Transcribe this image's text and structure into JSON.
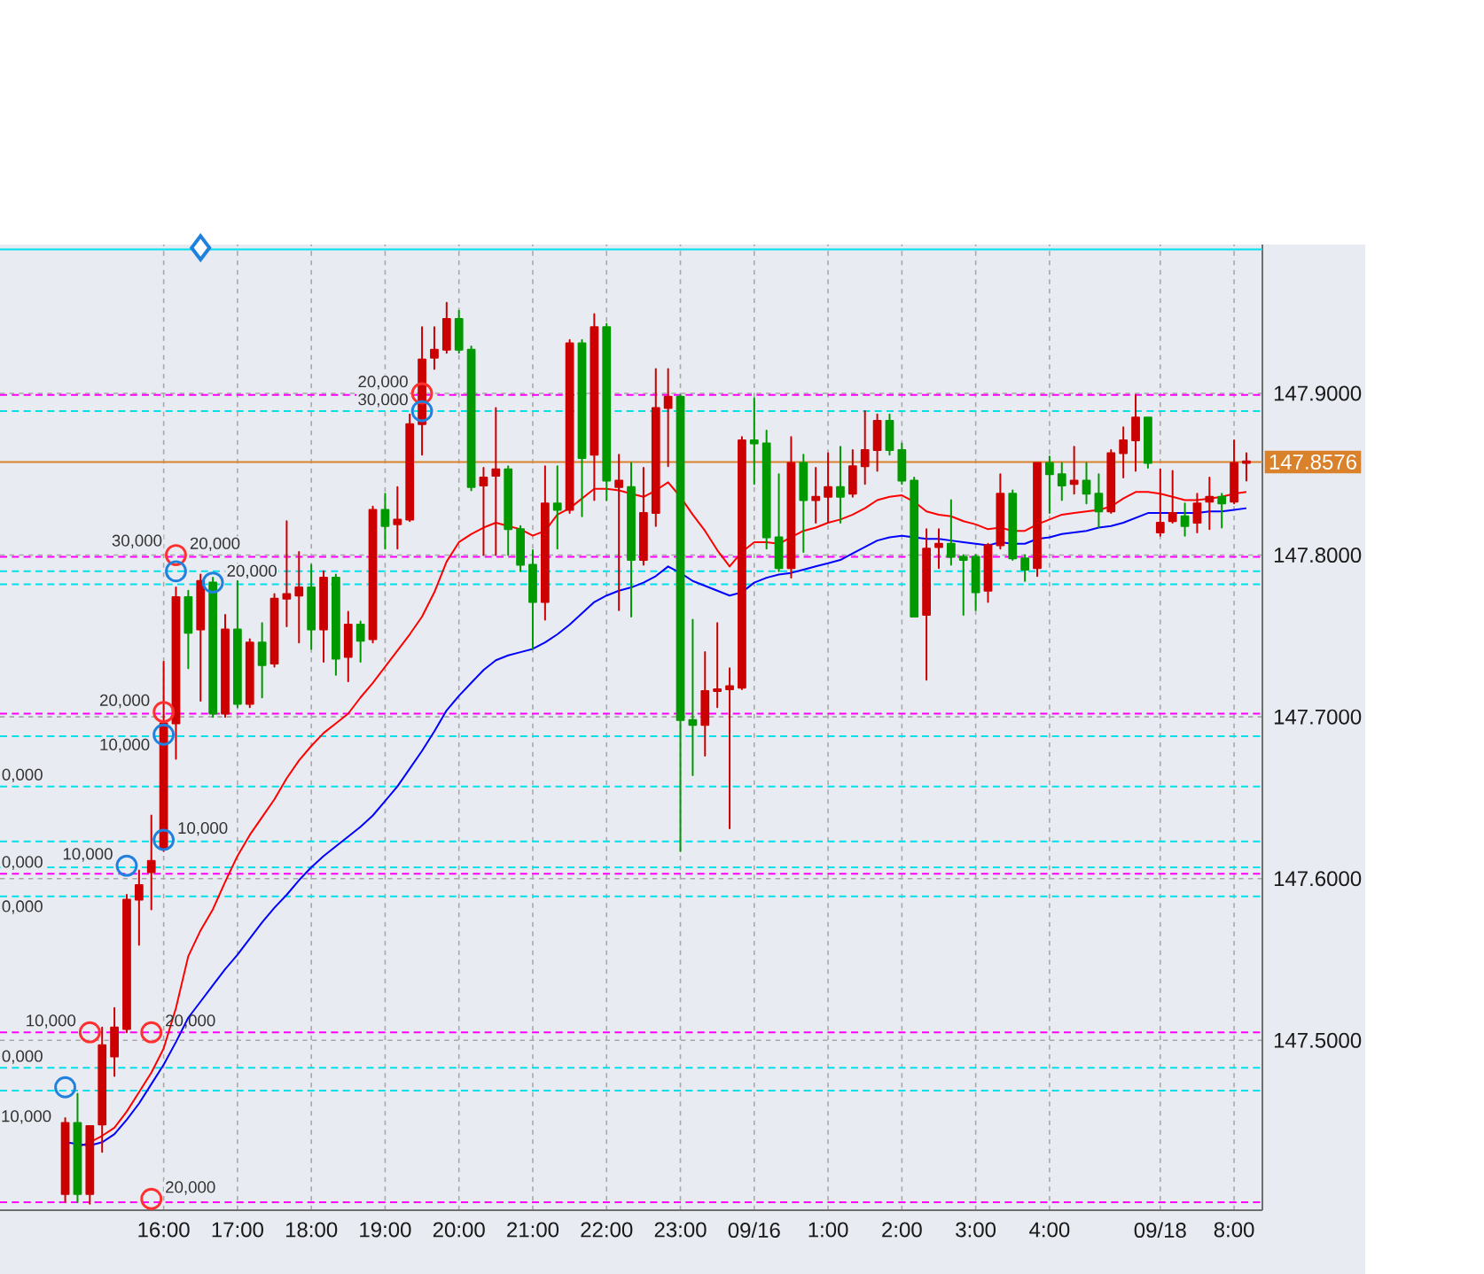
{
  "chart_data": {
    "type": "candlestick",
    "categories": [
      null,
      null,
      null,
      null,
      null,
      null,
      null,
      null,
      "16:00",
      null,
      null,
      null,
      null,
      null,
      "17:00",
      null,
      null,
      null,
      null,
      null,
      "18:00",
      null,
      null,
      null,
      null,
      null,
      "19:00",
      null,
      null,
      null,
      null,
      null,
      "20:00",
      null,
      null,
      null,
      null,
      null,
      "21:00",
      null,
      null,
      null,
      null,
      null,
      "22:00",
      null,
      null,
      null,
      null,
      null,
      "23:00",
      null,
      null,
      null,
      null,
      null,
      "09/16",
      null,
      null,
      null,
      null,
      null,
      "1:00",
      null,
      null,
      null,
      null,
      null,
      "2:00",
      null,
      null,
      null,
      null,
      null,
      "3:00",
      null,
      null,
      null,
      null,
      null,
      "4:00",
      null,
      null,
      null,
      null,
      null,
      null,
      null,
      null,
      "09/18",
      null,
      null,
      null,
      null,
      null,
      "8:00",
      null
    ],
    "ohlc": [
      [
        147.405,
        147.452,
        147.4,
        147.449
      ],
      [
        147.449,
        147.467,
        147.4,
        147.405
      ],
      [
        147.405,
        147.447,
        147.399,
        147.447
      ],
      [
        147.448,
        147.508,
        147.431,
        147.497
      ],
      [
        147.49,
        147.52,
        147.478,
        147.508
      ],
      [
        147.507,
        147.59,
        147.505,
        147.587
      ],
      [
        147.587,
        147.605,
        147.559,
        147.596
      ],
      [
        147.604,
        147.639,
        147.581,
        147.611
      ],
      [
        147.619,
        147.734,
        147.617,
        147.696
      ],
      [
        147.696,
        147.78,
        147.674,
        147.774
      ],
      [
        147.774,
        147.778,
        147.73,
        147.752
      ],
      [
        147.754,
        147.788,
        147.71,
        147.784
      ],
      [
        147.783,
        147.786,
        147.7,
        147.702
      ],
      [
        147.702,
        147.763,
        147.7,
        147.754
      ],
      [
        147.754,
        147.784,
        147.706,
        147.708
      ],
      [
        147.708,
        147.748,
        147.706,
        147.746
      ],
      [
        147.746,
        147.758,
        147.712,
        147.732
      ],
      [
        147.733,
        147.776,
        147.731,
        147.773
      ],
      [
        147.773,
        147.821,
        147.756,
        147.776
      ],
      [
        147.775,
        147.802,
        147.746,
        147.78
      ],
      [
        147.78,
        147.794,
        147.742,
        147.754
      ],
      [
        147.754,
        147.79,
        147.734,
        147.786
      ],
      [
        147.786,
        147.788,
        147.726,
        147.736
      ],
      [
        147.737,
        147.765,
        147.722,
        147.757
      ],
      [
        147.757,
        147.759,
        147.734,
        147.747
      ],
      [
        147.748,
        147.83,
        147.746,
        147.828
      ],
      [
        147.828,
        147.838,
        147.804,
        147.818
      ],
      [
        147.819,
        147.842,
        147.804,
        147.822
      ],
      [
        147.822,
        147.887,
        147.821,
        147.881
      ],
      [
        147.881,
        147.941,
        147.862,
        147.921
      ],
      [
        147.922,
        147.941,
        147.915,
        147.927
      ],
      [
        147.927,
        147.956,
        147.925,
        147.946
      ],
      [
        147.946,
        147.951,
        147.925,
        147.927
      ],
      [
        147.927,
        147.929,
        147.84,
        147.842
      ],
      [
        147.843,
        147.854,
        147.8,
        147.848
      ],
      [
        147.849,
        147.891,
        147.8,
        147.853
      ],
      [
        147.853,
        147.855,
        147.8,
        147.816
      ],
      [
        147.816,
        147.818,
        147.79,
        147.794
      ],
      [
        147.794,
        147.803,
        147.742,
        147.771
      ],
      [
        147.771,
        147.855,
        147.76,
        147.832
      ],
      [
        147.832,
        147.855,
        147.804,
        147.828
      ],
      [
        147.828,
        147.933,
        147.826,
        147.931
      ],
      [
        147.931,
        147.933,
        147.824,
        147.86
      ],
      [
        147.862,
        147.949,
        147.834,
        147.941
      ],
      [
        147.941,
        147.943,
        147.834,
        147.846
      ],
      [
        147.842,
        147.862,
        147.766,
        147.846
      ],
      [
        147.842,
        147.857,
        147.762,
        147.797
      ],
      [
        147.797,
        147.854,
        147.794,
        147.826
      ],
      [
        147.826,
        147.915,
        147.818,
        147.891
      ],
      [
        147.891,
        147.915,
        147.855,
        147.898
      ],
      [
        147.898,
        147.899,
        147.617,
        147.698
      ],
      [
        147.698,
        147.76,
        147.664,
        147.695
      ],
      [
        147.695,
        147.74,
        147.676,
        147.716
      ],
      [
        147.716,
        147.758,
        147.706,
        147.717
      ],
      [
        147.717,
        147.73,
        147.631,
        147.719
      ],
      [
        147.718,
        147.873,
        147.717,
        147.871
      ],
      [
        147.871,
        147.897,
        147.844,
        147.869
      ],
      [
        147.869,
        147.877,
        147.804,
        147.811
      ],
      [
        147.811,
        147.85,
        147.79,
        147.792
      ],
      [
        147.792,
        147.873,
        147.786,
        147.857
      ],
      [
        147.857,
        147.862,
        147.802,
        147.834
      ],
      [
        147.834,
        147.854,
        147.82,
        147.836
      ],
      [
        147.836,
        147.863,
        147.82,
        147.842
      ],
      [
        147.842,
        147.867,
        147.82,
        147.836
      ],
      [
        147.838,
        147.865,
        147.836,
        147.855
      ],
      [
        147.855,
        147.889,
        147.844,
        147.865
      ],
      [
        147.865,
        147.887,
        147.852,
        147.883
      ],
      [
        147.883,
        147.887,
        147.862,
        147.865
      ],
      [
        147.865,
        147.869,
        147.844,
        147.846
      ],
      [
        147.846,
        147.848,
        147.762,
        147.762
      ],
      [
        147.763,
        147.816,
        147.723,
        147.804
      ],
      [
        147.805,
        147.816,
        147.792,
        147.807
      ],
      [
        147.807,
        147.834,
        147.794,
        147.799
      ],
      [
        147.799,
        147.8,
        147.763,
        147.797
      ],
      [
        147.799,
        147.8,
        147.766,
        147.777
      ],
      [
        147.778,
        147.807,
        147.771,
        147.806
      ],
      [
        147.806,
        147.85,
        147.804,
        147.838
      ],
      [
        147.838,
        147.84,
        147.797,
        147.798
      ],
      [
        147.798,
        147.8,
        147.784,
        147.791
      ],
      [
        147.792,
        147.857,
        147.787,
        147.857
      ],
      [
        147.857,
        147.861,
        147.826,
        147.85
      ],
      [
        147.85,
        147.857,
        147.834,
        147.843
      ],
      [
        147.844,
        147.867,
        147.838,
        147.846
      ],
      [
        147.846,
        147.857,
        147.832,
        147.838
      ],
      [
        147.838,
        147.85,
        147.817,
        147.827
      ],
      [
        147.827,
        147.865,
        147.826,
        147.863
      ],
      [
        147.863,
        147.879,
        147.848,
        147.871
      ],
      [
        147.871,
        147.899,
        147.852,
        147.885
      ],
      [
        147.885,
        147.885,
        147.854,
        147.857
      ],
      [
        147.814,
        147.853,
        147.812,
        147.82
      ],
      [
        147.821,
        147.852,
        147.82,
        147.826
      ],
      [
        147.824,
        147.832,
        147.812,
        147.818
      ],
      [
        147.82,
        147.838,
        147.814,
        147.832
      ],
      [
        147.833,
        147.848,
        147.816,
        147.836
      ],
      [
        147.836,
        147.838,
        147.817,
        147.832
      ],
      [
        147.833,
        147.871,
        147.832,
        147.857
      ],
      [
        147.857,
        147.863,
        147.846,
        147.858
      ]
    ],
    "colors": [
      "#cc0000",
      "#009900",
      "#cc0000",
      "#cc0000",
      "#cc0000",
      "#cc0000",
      "#cc0000",
      "#cc0000",
      "#cc0000",
      "#cc0000",
      "#009900",
      "#cc0000",
      "#009900",
      "#cc0000",
      "#009900",
      "#cc0000",
      "#009900",
      "#cc0000",
      "#cc0000",
      "#cc0000",
      "#009900",
      "#cc0000",
      "#009900",
      "#cc0000",
      "#009900",
      "#cc0000",
      "#009900",
      "#cc0000",
      "#cc0000",
      "#cc0000",
      "#cc0000",
      "#cc0000",
      "#009900",
      "#009900",
      "#cc0000",
      "#cc0000",
      "#009900",
      "#009900",
      "#009900",
      "#cc0000",
      "#009900",
      "#cc0000",
      "#009900",
      "#cc0000",
      "#009900",
      "#cc0000",
      "#009900",
      "#cc0000",
      "#cc0000",
      "#cc0000",
      "#009900",
      "#009900",
      "#cc0000",
      "#cc0000",
      "#cc0000",
      "#cc0000",
      "#009900",
      "#009900",
      "#009900",
      "#cc0000",
      "#009900",
      "#cc0000",
      "#cc0000",
      "#009900",
      "#cc0000",
      "#cc0000",
      "#cc0000",
      "#009900",
      "#009900",
      "#009900",
      "#cc0000",
      "#cc0000",
      "#009900",
      "#009900",
      "#009900",
      "#cc0000",
      "#cc0000",
      "#009900",
      "#009900",
      "#cc0000",
      "#009900",
      "#009900",
      "#cc0000",
      "#009900",
      "#009900",
      "#cc0000",
      "#cc0000",
      "#cc0000",
      "#009900",
      "#cc0000",
      "#cc0000",
      "#009900",
      "#cc0000",
      "#cc0000",
      "#009900",
      "#cc0000",
      "#cc0000"
    ],
    "ylim": [
      147.395,
      147.992
    ],
    "yticks": [
      {
        "value": 147.5,
        "label": "147.5000"
      },
      {
        "value": 147.6,
        "label": "147.6000"
      },
      {
        "value": 147.7,
        "label": "147.7000"
      },
      {
        "value": 147.8,
        "label": "147.8000"
      },
      {
        "value": 147.9,
        "label": "147.9000"
      }
    ],
    "grid": true,
    "series": [
      {
        "type": "line",
        "color": "#ff0000",
        "line_style": "solid",
        "values": [
          null,
          147.434,
          147.437,
          147.441,
          147.446,
          147.456,
          147.468,
          147.48,
          147.495,
          147.52,
          147.552,
          147.568,
          147.581,
          147.598,
          147.614,
          147.627,
          147.638,
          147.649,
          147.662,
          147.673,
          147.682,
          147.69,
          147.696,
          147.702,
          147.712,
          147.721,
          147.731,
          147.741,
          147.751,
          147.762,
          147.777,
          147.796,
          147.808,
          147.813,
          147.817,
          147.82,
          147.818,
          147.816,
          147.812,
          147.815,
          147.825,
          147.829,
          147.835,
          147.841,
          147.841,
          147.84,
          147.838,
          147.836,
          147.84,
          147.845,
          147.836,
          147.825,
          147.815,
          147.803,
          147.793,
          147.802,
          147.808,
          147.808,
          147.807,
          147.811,
          147.815,
          147.817,
          147.82,
          147.822,
          147.825,
          147.829,
          147.834,
          147.836,
          147.837,
          147.833,
          147.827,
          147.825,
          147.824,
          147.821,
          147.819,
          147.816,
          147.817,
          147.815,
          147.815,
          147.819,
          147.822,
          147.825,
          147.826,
          147.827,
          147.828,
          147.83,
          147.835,
          147.839,
          147.839,
          147.838,
          147.836,
          147.834,
          147.834,
          147.835,
          147.836,
          147.838,
          147.839
        ]
      },
      {
        "type": "line",
        "color": "#0000ff",
        "line_style": "solid",
        "values": [
          147.437,
          147.436,
          147.435,
          147.437,
          147.442,
          147.451,
          147.461,
          147.473,
          147.485,
          147.499,
          147.514,
          147.524,
          147.534,
          147.544,
          147.553,
          147.563,
          147.573,
          147.582,
          147.59,
          147.599,
          147.607,
          147.614,
          147.62,
          147.626,
          147.632,
          147.639,
          147.648,
          147.657,
          147.668,
          147.679,
          147.691,
          147.704,
          147.713,
          147.721,
          147.729,
          147.735,
          147.738,
          147.74,
          147.742,
          147.746,
          147.751,
          147.757,
          147.764,
          147.771,
          147.775,
          147.778,
          147.78,
          147.783,
          147.787,
          147.793,
          147.789,
          147.784,
          147.781,
          147.778,
          147.775,
          147.777,
          147.783,
          147.786,
          147.788,
          147.789,
          147.791,
          147.793,
          147.795,
          147.797,
          147.801,
          147.805,
          147.809,
          147.811,
          147.812,
          147.811,
          147.81,
          147.81,
          147.809,
          147.808,
          147.807,
          147.806,
          147.808,
          147.807,
          147.807,
          147.81,
          147.811,
          147.813,
          147.814,
          147.815,
          147.817,
          147.818,
          147.82,
          147.823,
          147.826,
          147.826,
          147.826,
          147.826,
          147.826,
          147.827,
          147.827,
          147.828,
          147.829
        ]
      },
      {
        "type": "scatter",
        "color": "#ff3030",
        "marker": "circle",
        "values": [
          null,
          null,
          147.505,
          null,
          null,
          null,
          null,
          147.505,
          147.703,
          147.8,
          null,
          null,
          null,
          null,
          null,
          null,
          null,
          null,
          null,
          null,
          null,
          null,
          null,
          null,
          null,
          null,
          null,
          null,
          null,
          147.9,
          null,
          null,
          null,
          null,
          null,
          null,
          null,
          null,
          null,
          null,
          null,
          null,
          null,
          null,
          null,
          null,
          null,
          null,
          null,
          null,
          null,
          null,
          null,
          null,
          null,
          null,
          null,
          null,
          null,
          null,
          null,
          null,
          null,
          null,
          null,
          null,
          null,
          null,
          null,
          null,
          null,
          null,
          null,
          null,
          null,
          null,
          null,
          null,
          null,
          null,
          null,
          null,
          null,
          null,
          null,
          null,
          null,
          null,
          null,
          null,
          null,
          null,
          null,
          null,
          null,
          null,
          null
        ]
      },
      {
        "type": "scatter",
        "color": "#ff3030",
        "marker": "circle",
        "values": [
          null,
          null,
          null,
          null,
          null,
          null,
          null,
          147.402,
          null,
          null,
          null,
          null,
          null,
          null,
          null,
          null,
          null,
          null,
          null,
          null,
          null,
          null,
          null,
          null,
          null,
          null,
          null,
          null,
          null,
          null,
          null,
          null,
          null,
          null,
          null,
          null,
          null,
          null,
          null,
          null,
          null,
          null,
          null,
          null,
          null,
          null,
          null,
          null,
          null,
          null,
          null,
          null,
          null,
          null,
          null,
          null,
          null,
          null,
          null,
          null,
          null,
          null,
          null,
          null,
          null,
          null,
          null,
          null,
          null,
          null,
          null,
          null,
          null,
          null,
          null,
          null,
          null,
          null,
          null,
          null,
          null,
          null,
          null,
          null,
          null,
          null,
          null,
          null,
          null,
          null,
          null,
          null,
          null,
          null,
          null,
          null,
          null
        ]
      },
      {
        "type": "scatter",
        "color": "#2080dd",
        "marker": "circle",
        "values": [
          147.471,
          null,
          null,
          null,
          null,
          147.608,
          null,
          null,
          147.624,
          147.79,
          null,
          null,
          147.783,
          null,
          null,
          null,
          null,
          null,
          null,
          null,
          null,
          null,
          null,
          null,
          null,
          null,
          null,
          null,
          null,
          147.889,
          null,
          null,
          null,
          null,
          null,
          null,
          null,
          null,
          null,
          null,
          null,
          null,
          null,
          null,
          null,
          null,
          null,
          null,
          null,
          null,
          null,
          null,
          null,
          null,
          null,
          null,
          null,
          null,
          null,
          null,
          null,
          null,
          null,
          null,
          null,
          null,
          null,
          null,
          null,
          null,
          null,
          null,
          null,
          null,
          null,
          null,
          null,
          null,
          null,
          null,
          null,
          null,
          null,
          null,
          null,
          null,
          null,
          null,
          null,
          null,
          null,
          null,
          null,
          null,
          null,
          null,
          null
        ]
      },
      {
        "type": "scatter",
        "color": "#2080dd",
        "marker": "circle",
        "values": [
          null,
          null,
          null,
          null,
          null,
          null,
          null,
          null,
          147.689,
          null,
          null,
          null,
          null,
          null,
          null,
          null,
          null,
          null,
          null,
          null,
          null,
          null,
          null,
          null,
          null,
          null,
          null,
          null,
          null,
          null,
          null,
          null,
          null,
          null,
          null,
          null,
          null,
          null,
          null,
          null,
          null,
          null,
          null,
          null,
          null,
          null,
          null,
          null,
          null,
          null,
          null,
          null,
          null,
          null,
          null,
          null,
          null,
          null,
          null,
          null,
          null,
          null,
          null,
          null,
          null,
          null,
          null,
          null,
          null,
          null,
          null,
          null,
          null,
          null,
          null,
          null,
          null,
          null,
          null,
          null,
          null,
          null,
          null,
          null,
          null,
          null,
          null,
          null,
          null,
          null,
          null,
          null,
          null,
          null,
          null,
          null,
          null
        ]
      },
      {
        "type": "scatter",
        "color": "#2080dd",
        "marker": "diamond",
        "values": [
          null,
          null,
          null,
          null,
          null,
          null,
          null,
          null,
          null,
          null,
          null,
          147.99,
          null,
          null,
          null,
          null,
          null,
          null,
          null,
          null,
          null,
          null,
          null,
          null,
          null,
          null,
          null,
          null,
          null,
          null,
          null,
          null,
          null,
          null,
          null,
          null,
          null,
          null,
          null,
          null,
          null,
          null,
          null,
          null,
          null,
          null,
          null,
          null,
          null,
          null,
          null,
          null,
          null,
          null,
          null,
          null,
          null,
          null,
          null,
          null,
          null,
          null,
          null,
          null,
          null,
          null,
          null,
          null,
          null,
          null,
          null,
          null,
          null,
          null,
          null,
          null,
          null,
          null,
          null,
          null,
          null,
          null,
          null,
          null,
          null,
          null,
          null,
          null,
          null,
          null,
          null,
          null,
          null,
          null,
          null,
          null,
          null
        ]
      }
    ],
    "ref_lines": [
      {
        "axis": "y",
        "value": 147.989,
        "color": "#00e0ea",
        "line_style": "solid"
      },
      {
        "axis": "y",
        "value": 147.899,
        "color": "#ff00ff",
        "line_style": "dashed"
      },
      {
        "axis": "y",
        "value": 147.889,
        "color": "#00e0ea",
        "line_style": "dashed"
      },
      {
        "axis": "y",
        "value": 147.8576,
        "label": "147.8576",
        "color": "#d9822b",
        "line_style": "solid"
      },
      {
        "axis": "y",
        "value": 147.799,
        "color": "#ff00ff",
        "line_style": "dashed"
      },
      {
        "axis": "y",
        "value": 147.79,
        "color": "#00e0ea",
        "line_style": "dashed"
      },
      {
        "axis": "y",
        "value": 147.782,
        "color": "#00e0ea",
        "line_style": "dashed"
      },
      {
        "axis": "y",
        "value": 147.702,
        "color": "#ff00ff",
        "line_style": "dashed"
      },
      {
        "axis": "y",
        "value": 147.688,
        "color": "#00e0ea",
        "line_style": "dashed"
      },
      {
        "axis": "y",
        "value": 147.657,
        "color": "#00e0ea",
        "line_style": "dashed"
      },
      {
        "axis": "y",
        "value": 147.623,
        "color": "#00e0ea",
        "line_style": "dashed"
      },
      {
        "axis": "y",
        "value": 147.607,
        "color": "#00e0ea",
        "line_style": "dashed"
      },
      {
        "axis": "y",
        "value": 147.603,
        "color": "#ff00ff",
        "line_style": "dashed"
      },
      {
        "axis": "y",
        "value": 147.589,
        "color": "#00e0ea",
        "line_style": "dashed"
      },
      {
        "axis": "y",
        "value": 147.505,
        "color": "#ff00ff",
        "line_style": "dashed"
      },
      {
        "axis": "y",
        "value": 147.483,
        "color": "#00e0ea",
        "line_style": "dashed"
      },
      {
        "axis": "y",
        "value": 147.469,
        "color": "#00e0ea",
        "line_style": "dashed"
      },
      {
        "axis": "y",
        "value": 147.4,
        "color": "#ff00ff",
        "line_style": "dashed"
      }
    ],
    "annotations": [
      {
        "text": "0,000",
        "y": 147.657
      },
      {
        "text": "0,000",
        "y": 147.603
      },
      {
        "text": "0,000",
        "y": 147.589
      },
      {
        "text": "0,000",
        "y": 147.483
      },
      {
        "text": "10,000",
        "y": 147.471
      },
      {
        "text": "10,000",
        "y": 147.505
      },
      {
        "text": "10,000",
        "y": 147.608
      },
      {
        "text": "20,000",
        "y": 147.505
      },
      {
        "text": "20,000",
        "y": 147.402
      },
      {
        "text": "10,000",
        "y": 147.624
      },
      {
        "text": "10,000",
        "y": 147.689
      },
      {
        "text": "20,000",
        "y": 147.703
      },
      {
        "text": "20,000",
        "y": 147.8
      },
      {
        "text": "30,000",
        "y": 147.79
      },
      {
        "text": "20,000",
        "y": 147.783
      },
      {
        "text": "20,000",
        "y": 147.9
      },
      {
        "text": "30,000",
        "y": 147.889
      }
    ]
  }
}
